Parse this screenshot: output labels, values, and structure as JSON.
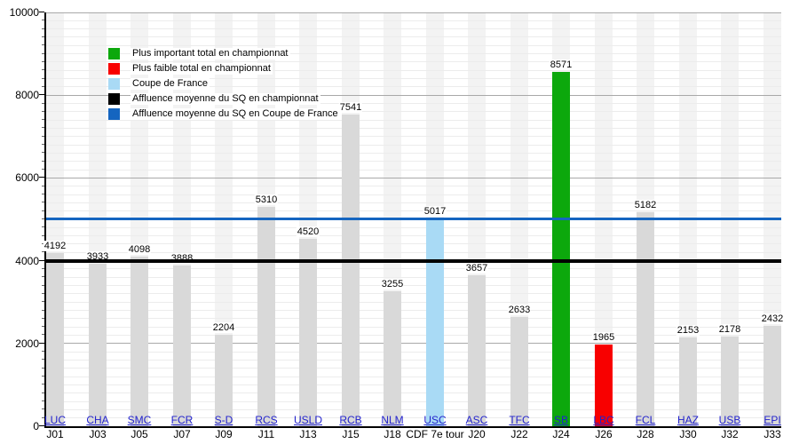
{
  "chart_data": {
    "type": "bar",
    "title": "",
    "xlabel": "",
    "ylabel": "",
    "ylim": [
      0,
      10000
    ],
    "y_major_ticks": [
      0,
      2000,
      4000,
      6000,
      8000,
      10000
    ],
    "y_minor_step": 200,
    "grid": true,
    "legend_position": "top-left",
    "bars": [
      {
        "team": "LUC",
        "round": "J01",
        "value": 4192,
        "kind": "normal"
      },
      {
        "team": "CHA",
        "round": "J03",
        "value": 3933,
        "kind": "normal"
      },
      {
        "team": "SMC",
        "round": "J05",
        "value": 4098,
        "kind": "normal"
      },
      {
        "team": "FCR",
        "round": "J07",
        "value": 3888,
        "kind": "normal"
      },
      {
        "team": "S-D",
        "round": "J09",
        "value": 2204,
        "kind": "normal"
      },
      {
        "team": "RCS",
        "round": "J11",
        "value": 5310,
        "kind": "normal"
      },
      {
        "team": "USLD",
        "round": "J13",
        "value": 4520,
        "kind": "normal"
      },
      {
        "team": "RCB",
        "round": "J15",
        "value": 7541,
        "kind": "normal"
      },
      {
        "team": "NLM",
        "round": "J18",
        "value": 3255,
        "kind": "normal"
      },
      {
        "team": "USC",
        "round": "CDF 7e tour",
        "value": 5017,
        "kind": "cup"
      },
      {
        "team": "ASC",
        "round": "J20",
        "value": 3657,
        "kind": "normal"
      },
      {
        "team": "TFC",
        "round": "J22",
        "value": 2633,
        "kind": "normal"
      },
      {
        "team": "SB",
        "round": "J24",
        "value": 8571,
        "kind": "max"
      },
      {
        "team": "LBC",
        "round": "J26",
        "value": 1965,
        "kind": "min"
      },
      {
        "team": "FCL",
        "round": "J28",
        "value": 5182,
        "kind": "normal"
      },
      {
        "team": "HAZ",
        "round": "J30",
        "value": 2153,
        "kind": "normal"
      },
      {
        "team": "USB",
        "round": "J32",
        "value": 2178,
        "kind": "normal"
      },
      {
        "team": "EPI",
        "round": "J33",
        "value": 2432,
        "kind": "normal"
      }
    ],
    "reference_lines": [
      {
        "name": "avg-championship",
        "value": 3983,
        "color": "#000000",
        "thickness": 4
      },
      {
        "name": "avg-cup",
        "value": 5017,
        "color": "#1565c0",
        "thickness": 3
      }
    ],
    "legend": [
      {
        "label": "Plus important total en championnat",
        "color": "#0ca80c"
      },
      {
        "label": "Plus faible total en championnat",
        "color": "#f80000"
      },
      {
        "label": "Coupe de France",
        "color": "#a9daf5"
      },
      {
        "label": "Affluence moyenne du SQ en championnat",
        "color": "#000000"
      },
      {
        "label": "Affluence moyenne du SQ en Coupe de France",
        "color": "#1565c0"
      }
    ]
  },
  "colors": {
    "bar_normal": "#d9d9d9",
    "bar_max": "#0ca80c",
    "bar_min": "#f80000",
    "bar_cup": "#a9daf5",
    "column_band": "#f3f3f3",
    "grid_minor": "#ececec",
    "grid_major": "#a9a9a9",
    "axis": "#000000",
    "team_link": "#2222cc"
  }
}
